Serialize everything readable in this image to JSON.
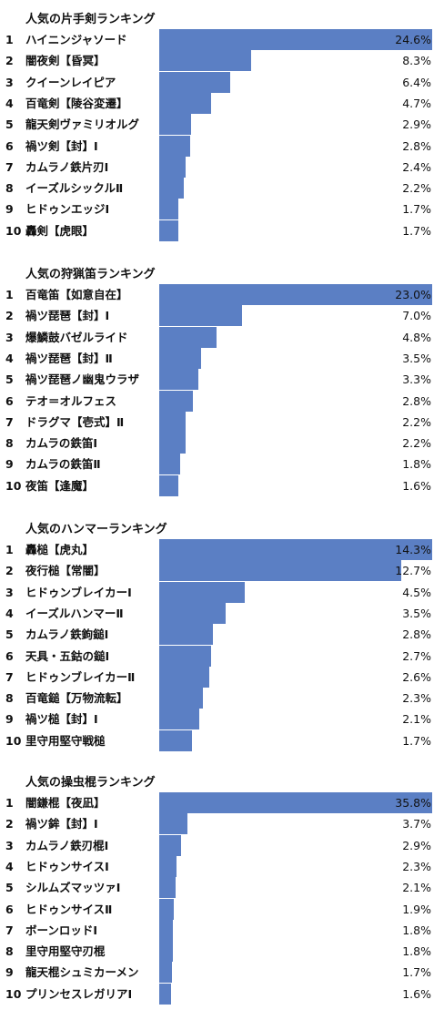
{
  "chart_data": [
    {
      "type": "bar",
      "orientation": "horizontal",
      "title": "人気の片手剣ランキング",
      "ranks": [
        "1",
        "2",
        "3",
        "4",
        "5",
        "6",
        "7",
        "8",
        "9",
        "10"
      ],
      "categories": [
        "ハイニンジャソード",
        "闇夜剣【昏冥】",
        "クイーンレイピア",
        "百竜剣【陵谷変遷】",
        "龍天剣ヴァミリオルグ",
        "禍ツ剣【封】Ⅰ",
        "カムラノ鉄片刃Ⅰ",
        "イーズルシックルⅡ",
        "ヒドゥンエッジⅠ",
        "轟剣【虎眼】"
      ],
      "values": [
        24.6,
        8.3,
        6.4,
        4.7,
        2.9,
        2.8,
        2.4,
        2.2,
        1.7,
        1.7
      ],
      "value_labels": [
        "24.6%",
        "8.3%",
        "6.4%",
        "4.7%",
        "2.9%",
        "2.8%",
        "2.4%",
        "2.2%",
        "1.7%",
        "1.7%"
      ],
      "bar_color": "#5b7fc4"
    },
    {
      "type": "bar",
      "orientation": "horizontal",
      "title": "人気の狩猟笛ランキング",
      "ranks": [
        "1",
        "2",
        "3",
        "4",
        "5",
        "6",
        "7",
        "8",
        "9",
        "10"
      ],
      "categories": [
        "百竜笛【如意自在】",
        "禍ツ琵琶【封】Ⅰ",
        "爆鱗鼓バゼルライド",
        "禍ツ琵琶【封】Ⅱ",
        "禍ツ琵琶ノ幽鬼ウラザ",
        "テオ＝オルフェス",
        "ドラグマ【壱式】Ⅱ",
        "カムラの鉄笛Ⅰ",
        "カムラの鉄笛Ⅱ",
        "夜笛【逢魔】"
      ],
      "values": [
        23.0,
        7.0,
        4.8,
        3.5,
        3.3,
        2.8,
        2.2,
        2.2,
        1.8,
        1.6
      ],
      "value_labels": [
        "23.0%",
        "7.0%",
        "4.8%",
        "3.5%",
        "3.3%",
        "2.8%",
        "2.2%",
        "2.2%",
        "1.8%",
        "1.6%"
      ],
      "bar_color": "#5b7fc4"
    },
    {
      "type": "bar",
      "orientation": "horizontal",
      "title": "人気のハンマーランキング",
      "ranks": [
        "1",
        "2",
        "3",
        "4",
        "5",
        "6",
        "7",
        "8",
        "9",
        "10"
      ],
      "categories": [
        "轟槌【虎丸】",
        "夜行槌【常闇】",
        "ヒドゥンブレイカーⅠ",
        "イーズルハンマーⅡ",
        "カムラノ鉄鉤鎚Ⅰ",
        "天具・五鈷の鎚Ⅰ",
        "ヒドゥンブレイカーⅡ",
        "百竜鎚【万物流転】",
        "禍ツ槌【封】Ⅰ",
        "里守用堅守戦槌"
      ],
      "values": [
        14.3,
        12.7,
        4.5,
        3.5,
        2.8,
        2.7,
        2.6,
        2.3,
        2.1,
        1.7
      ],
      "value_labels": [
        "14.3%",
        "12.7%",
        "4.5%",
        "3.5%",
        "2.8%",
        "2.7%",
        "2.6%",
        "2.3%",
        "2.1%",
        "1.7%"
      ],
      "bar_color": "#5b7fc4"
    },
    {
      "type": "bar",
      "orientation": "horizontal",
      "title": "人気の操虫棍ランキング",
      "ranks": [
        "1",
        "2",
        "3",
        "4",
        "5",
        "6",
        "7",
        "8",
        "9",
        "10"
      ],
      "categories": [
        "闇鎌棍【夜凪】",
        "禍ツ鉾【封】Ⅰ",
        "カムラノ鉄刃棍Ⅰ",
        "ヒドゥンサイスⅠ",
        "シルムズマッツァⅠ",
        "ヒドゥンサイスⅡ",
        "ボーンロッドⅠ",
        "里守用堅守刃棍",
        "龍天棍シュミカーメン",
        "プリンセスレガリアⅠ"
      ],
      "values": [
        35.8,
        3.7,
        2.9,
        2.3,
        2.1,
        1.9,
        1.8,
        1.8,
        1.7,
        1.6
      ],
      "value_labels": [
        "35.8%",
        "3.7%",
        "2.9%",
        "2.3%",
        "2.1%",
        "1.9%",
        "1.8%",
        "1.8%",
        "1.7%",
        "1.6%"
      ],
      "bar_color": "#5b7fc4"
    }
  ]
}
